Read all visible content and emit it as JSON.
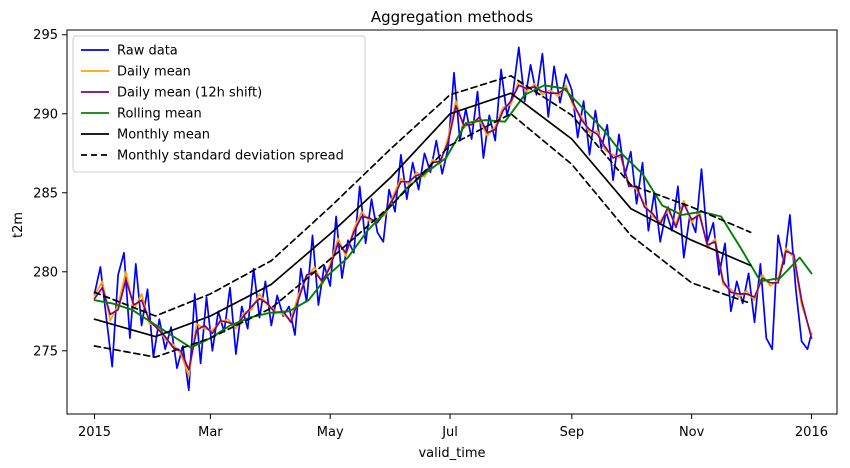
{
  "chart_data": {
    "type": "line",
    "title": "Aggregation methods",
    "xlabel": "valid_time",
    "ylabel": "t2m",
    "x_range": [
      "2014-12-18",
      "2016-01-14"
    ],
    "ylim": [
      271.0,
      295.3
    ],
    "yticks": [
      275,
      280,
      285,
      290,
      295
    ],
    "xticks": [
      {
        "date": "2015-01-01",
        "label": "2015"
      },
      {
        "date": "2015-03-01",
        "label": "Mar"
      },
      {
        "date": "2015-05-01",
        "label": "May"
      },
      {
        "date": "2015-07-01",
        "label": "Jul"
      },
      {
        "date": "2015-09-01",
        "label": "Sep"
      },
      {
        "date": "2015-11-01",
        "label": "Nov"
      },
      {
        "date": "2016-01-01",
        "label": "2016"
      }
    ],
    "grid": false,
    "legend_position": "top-left",
    "series": [
      {
        "name": "Raw data",
        "color": "#0000ff",
        "style": "solid",
        "width": 1.7,
        "x": [
          "2015-01-01",
          "2015-01-04",
          "2015-01-07",
          "2015-01-10",
          "2015-01-13",
          "2015-01-16",
          "2015-01-19",
          "2015-01-22",
          "2015-01-25",
          "2015-01-28",
          "2015-01-31",
          "2015-02-03",
          "2015-02-06",
          "2015-02-09",
          "2015-02-12",
          "2015-02-15",
          "2015-02-18",
          "2015-02-21",
          "2015-02-24",
          "2015-02-27",
          "2015-03-02",
          "2015-03-05",
          "2015-03-08",
          "2015-03-11",
          "2015-03-14",
          "2015-03-17",
          "2015-03-20",
          "2015-03-23",
          "2015-03-26",
          "2015-03-29",
          "2015-04-01",
          "2015-04-04",
          "2015-04-07",
          "2015-04-10",
          "2015-04-13",
          "2015-04-16",
          "2015-04-19",
          "2015-04-22",
          "2015-04-25",
          "2015-04-28",
          "2015-05-01",
          "2015-05-04",
          "2015-05-07",
          "2015-05-10",
          "2015-05-13",
          "2015-05-16",
          "2015-05-19",
          "2015-05-22",
          "2015-05-25",
          "2015-05-28",
          "2015-05-31",
          "2015-06-03",
          "2015-06-06",
          "2015-06-09",
          "2015-06-12",
          "2015-06-15",
          "2015-06-18",
          "2015-06-21",
          "2015-06-24",
          "2015-06-27",
          "2015-06-30",
          "2015-07-03",
          "2015-07-06",
          "2015-07-09",
          "2015-07-12",
          "2015-07-15",
          "2015-07-18",
          "2015-07-21",
          "2015-07-24",
          "2015-07-27",
          "2015-07-30",
          "2015-08-02",
          "2015-08-05",
          "2015-08-08",
          "2015-08-11",
          "2015-08-14",
          "2015-08-17",
          "2015-08-20",
          "2015-08-23",
          "2015-08-26",
          "2015-08-29",
          "2015-09-01",
          "2015-09-04",
          "2015-09-07",
          "2015-09-10",
          "2015-09-13",
          "2015-09-16",
          "2015-09-19",
          "2015-09-22",
          "2015-09-25",
          "2015-09-28",
          "2015-10-01",
          "2015-10-04",
          "2015-10-07",
          "2015-10-10",
          "2015-10-13",
          "2015-10-16",
          "2015-10-19",
          "2015-10-22",
          "2015-10-25",
          "2015-10-28",
          "2015-10-31",
          "2015-11-03",
          "2015-11-06",
          "2015-11-09",
          "2015-11-12",
          "2015-11-15",
          "2015-11-18",
          "2015-11-21",
          "2015-11-24",
          "2015-11-27",
          "2015-11-30",
          "2015-12-03",
          "2015-12-06",
          "2015-12-09",
          "2015-12-12",
          "2015-12-15",
          "2015-12-18",
          "2015-12-21",
          "2015-12-24",
          "2015-12-27",
          "2015-12-30",
          "2016-01-01"
        ],
        "values": [
          278.6,
          280.3,
          277.1,
          274.0,
          279.8,
          281.2,
          275.8,
          280.5,
          276.6,
          278.9,
          274.6,
          277.0,
          275.1,
          276.5,
          273.9,
          275.3,
          272.5,
          278.6,
          274.2,
          278.4,
          275.0,
          277.5,
          276.2,
          279.0,
          274.8,
          277.8,
          276.4,
          280.2,
          277.1,
          279.4,
          276.6,
          278.5,
          277.2,
          277.8,
          276.0,
          280.2,
          278.1,
          282.3,
          277.9,
          280.4,
          279.1,
          283.5,
          279.6,
          282.0,
          281.2,
          285.4,
          281.8,
          284.6,
          282.5,
          281.9,
          285.2,
          283.8,
          287.4,
          284.6,
          286.9,
          285.2,
          287.5,
          286.3,
          288.3,
          286.2,
          287.8,
          292.6,
          288.3,
          290.3,
          288.4,
          291.4,
          287.2,
          289.9,
          288.3,
          292.8,
          289.9,
          291.3,
          294.2,
          290.8,
          293.1,
          291.2,
          293.8,
          289.8,
          293.0,
          290.7,
          292.5,
          291.5,
          288.5,
          290.8,
          287.4,
          290.2,
          287.8,
          289.3,
          285.8,
          288.7,
          286.1,
          287.6,
          284.3,
          286.9,
          282.6,
          285.0,
          281.9,
          283.8,
          282.6,
          285.4,
          280.9,
          283.5,
          282.5,
          286.5,
          281.9,
          283.1,
          279.8,
          281.8,
          277.5,
          279.4,
          278.0,
          279.9,
          276.8,
          280.5,
          275.8,
          275.1,
          282.3,
          280.5,
          283.6,
          278.9,
          275.6,
          275.1,
          276.1
        ]
      },
      {
        "name": "Daily mean",
        "color": "#ffa500",
        "style": "solid",
        "width": 1.7,
        "x": [
          "2015-01-01",
          "2015-01-05",
          "2015-01-09",
          "2015-01-13",
          "2015-01-17",
          "2015-01-21",
          "2015-01-25",
          "2015-01-29",
          "2015-02-02",
          "2015-02-06",
          "2015-02-10",
          "2015-02-14",
          "2015-02-18",
          "2015-02-22",
          "2015-02-26",
          "2015-03-02",
          "2015-03-06",
          "2015-03-10",
          "2015-03-14",
          "2015-03-18",
          "2015-03-22",
          "2015-03-26",
          "2015-03-30",
          "2015-04-03",
          "2015-04-07",
          "2015-04-11",
          "2015-04-15",
          "2015-04-19",
          "2015-04-23",
          "2015-04-27",
          "2015-05-01",
          "2015-05-05",
          "2015-05-09",
          "2015-05-13",
          "2015-05-17",
          "2015-05-21",
          "2015-05-25",
          "2015-05-29",
          "2015-06-02",
          "2015-06-06",
          "2015-06-10",
          "2015-06-14",
          "2015-06-18",
          "2015-06-22",
          "2015-06-26",
          "2015-06-30",
          "2015-07-04",
          "2015-07-08",
          "2015-07-12",
          "2015-07-16",
          "2015-07-20",
          "2015-07-24",
          "2015-07-28",
          "2015-08-01",
          "2015-08-05",
          "2015-08-09",
          "2015-08-13",
          "2015-08-17",
          "2015-08-21",
          "2015-08-25",
          "2015-08-29",
          "2015-09-02",
          "2015-09-06",
          "2015-09-10",
          "2015-09-14",
          "2015-09-18",
          "2015-09-22",
          "2015-09-26",
          "2015-09-30",
          "2015-10-04",
          "2015-10-08",
          "2015-10-12",
          "2015-10-16",
          "2015-10-20",
          "2015-10-24",
          "2015-10-28",
          "2015-11-01",
          "2015-11-05",
          "2015-11-09",
          "2015-11-13",
          "2015-11-17",
          "2015-11-21",
          "2015-11-25",
          "2015-11-29",
          "2015-12-03",
          "2015-12-07",
          "2015-12-11",
          "2015-12-15",
          "2015-12-19",
          "2015-12-23",
          "2015-12-27",
          "2016-01-01"
        ],
        "values": [
          278.5,
          279.4,
          276.9,
          277.9,
          280.0,
          277.6,
          278.6,
          276.7,
          276.6,
          275.7,
          275.4,
          274.8,
          273.4,
          276.7,
          276.4,
          276.3,
          276.8,
          277.0,
          276.4,
          277.4,
          277.6,
          278.6,
          277.9,
          277.5,
          277.3,
          277.0,
          278.6,
          279.6,
          280.3,
          279.2,
          280.5,
          282.1,
          281.0,
          282.7,
          283.8,
          283.2,
          283.3,
          283.6,
          284.8,
          285.9,
          285.5,
          286.3,
          286.0,
          287.1,
          286.8,
          288.5,
          290.8,
          289.1,
          289.5,
          289.6,
          288.6,
          289.2,
          290.4,
          290.6,
          292.1,
          291.4,
          291.9,
          291.2,
          291.5,
          291.1,
          291.8,
          290.4,
          289.8,
          288.8,
          288.9,
          287.7,
          287.4,
          287.2,
          285.6,
          285.2,
          284.3,
          283.5,
          283.2,
          283.9,
          283.0,
          284.5,
          283.1,
          283.8,
          281.5,
          282.1,
          279.2,
          278.9,
          278.4,
          278.8,
          278.2,
          279.8,
          279.1,
          279.5,
          281.5,
          280.9,
          277.9,
          276.0
        ]
      },
      {
        "name": "Daily mean (12h shift)",
        "color": "#800080",
        "style": "solid",
        "width": 1.7,
        "x": [
          "2015-01-01",
          "2015-01-05",
          "2015-01-09",
          "2015-01-13",
          "2015-01-17",
          "2015-01-21",
          "2015-01-25",
          "2015-01-29",
          "2015-02-02",
          "2015-02-06",
          "2015-02-10",
          "2015-02-14",
          "2015-02-18",
          "2015-02-22",
          "2015-02-26",
          "2015-03-02",
          "2015-03-06",
          "2015-03-10",
          "2015-03-14",
          "2015-03-18",
          "2015-03-22",
          "2015-03-26",
          "2015-03-30",
          "2015-04-03",
          "2015-04-07",
          "2015-04-11",
          "2015-04-15",
          "2015-04-19",
          "2015-04-23",
          "2015-04-27",
          "2015-05-01",
          "2015-05-05",
          "2015-05-09",
          "2015-05-13",
          "2015-05-17",
          "2015-05-21",
          "2015-05-25",
          "2015-05-29",
          "2015-06-02",
          "2015-06-06",
          "2015-06-10",
          "2015-06-14",
          "2015-06-18",
          "2015-06-22",
          "2015-06-26",
          "2015-06-30",
          "2015-07-04",
          "2015-07-08",
          "2015-07-12",
          "2015-07-16",
          "2015-07-20",
          "2015-07-24",
          "2015-07-28",
          "2015-08-01",
          "2015-08-05",
          "2015-08-09",
          "2015-08-13",
          "2015-08-17",
          "2015-08-21",
          "2015-08-25",
          "2015-08-29",
          "2015-09-02",
          "2015-09-06",
          "2015-09-10",
          "2015-09-14",
          "2015-09-18",
          "2015-09-22",
          "2015-09-26",
          "2015-09-30",
          "2015-10-04",
          "2015-10-08",
          "2015-10-12",
          "2015-10-16",
          "2015-10-20",
          "2015-10-24",
          "2015-10-28",
          "2015-11-01",
          "2015-11-05",
          "2015-11-09",
          "2015-11-13",
          "2015-11-17",
          "2015-11-21",
          "2015-11-25",
          "2015-11-29",
          "2015-12-03",
          "2015-12-07",
          "2015-12-11",
          "2015-12-15",
          "2015-12-19",
          "2015-12-23",
          "2015-12-27",
          "2016-01-01"
        ],
        "values": [
          278.3,
          279.0,
          277.3,
          277.6,
          279.5,
          277.9,
          278.2,
          276.9,
          276.4,
          275.9,
          275.2,
          275.0,
          273.8,
          276.3,
          276.6,
          276.1,
          276.9,
          276.8,
          276.6,
          277.2,
          277.8,
          278.3,
          278.0,
          277.4,
          277.5,
          276.8,
          278.3,
          279.8,
          280.0,
          279.4,
          280.3,
          281.8,
          281.2,
          282.5,
          283.5,
          283.4,
          283.1,
          283.8,
          284.6,
          285.7,
          285.7,
          286.1,
          286.2,
          286.9,
          287.0,
          288.2,
          290.5,
          289.3,
          289.3,
          289.8,
          288.8,
          289.0,
          290.2,
          290.8,
          291.8,
          291.6,
          291.7,
          291.4,
          291.3,
          291.3,
          291.6,
          290.6,
          289.6,
          289.0,
          288.7,
          287.9,
          287.2,
          287.4,
          285.4,
          285.4,
          284.1,
          283.7,
          283.0,
          284.1,
          282.8,
          284.3,
          283.3,
          283.6,
          281.7,
          281.9,
          279.4,
          278.7,
          278.6,
          278.6,
          278.4,
          279.6,
          279.3,
          279.3,
          281.3,
          281.1,
          278.2,
          275.8
        ]
      },
      {
        "name": "Rolling mean",
        "color": "#008000",
        "style": "solid",
        "width": 1.9,
        "x": [
          "2015-01-01",
          "2015-01-10",
          "2015-01-20",
          "2015-01-30",
          "2015-02-09",
          "2015-02-19",
          "2015-03-01",
          "2015-03-11",
          "2015-03-21",
          "2015-03-31",
          "2015-04-10",
          "2015-04-20",
          "2015-04-30",
          "2015-05-10",
          "2015-05-20",
          "2015-05-30",
          "2015-06-09",
          "2015-06-19",
          "2015-06-29",
          "2015-07-09",
          "2015-07-19",
          "2015-07-29",
          "2015-08-08",
          "2015-08-18",
          "2015-08-28",
          "2015-09-07",
          "2015-09-17",
          "2015-09-27",
          "2015-10-07",
          "2015-10-17",
          "2015-10-27",
          "2015-11-06",
          "2015-11-16",
          "2015-11-26",
          "2015-12-06",
          "2015-12-16",
          "2015-12-26",
          "2016-01-01"
        ],
        "values": [
          278.2,
          278.0,
          277.6,
          276.8,
          276.0,
          275.2,
          275.8,
          276.6,
          277.1,
          277.4,
          277.5,
          278.2,
          279.8,
          280.9,
          282.6,
          283.9,
          285.3,
          286.3,
          287.2,
          289.4,
          289.6,
          289.5,
          291.2,
          291.8,
          291.6,
          290.3,
          289.0,
          287.4,
          286.2,
          284.2,
          283.6,
          283.8,
          283.5,
          281.5,
          279.4,
          279.6,
          280.9,
          279.9
        ]
      },
      {
        "name": "Monthly mean",
        "color": "#000000",
        "style": "solid",
        "width": 1.7,
        "x": [
          "2015-01-01",
          "2015-02-01",
          "2015-03-01",
          "2015-04-01",
          "2015-05-01",
          "2015-06-01",
          "2015-07-01",
          "2015-08-01",
          "2015-09-01",
          "2015-10-01",
          "2015-11-01",
          "2015-12-01"
        ],
        "values": [
          277.0,
          275.9,
          277.2,
          279.2,
          282.4,
          286.0,
          290.0,
          291.3,
          288.4,
          284.0,
          282.0,
          280.4
        ]
      },
      {
        "name": "Monthly standard deviation spread",
        "color": "#000000",
        "style": "dashed",
        "width": 1.7,
        "x": [
          "2015-01-01",
          "2015-02-01",
          "2015-03-01",
          "2015-04-01",
          "2015-05-01",
          "2015-06-01",
          "2015-07-01",
          "2015-08-01",
          "2015-09-01",
          "2015-10-01",
          "2015-11-01",
          "2015-12-01"
        ],
        "upper": [
          278.7,
          277.2,
          278.6,
          280.7,
          284.1,
          287.8,
          291.2,
          292.4,
          289.9,
          285.5,
          284.1,
          282.5
        ],
        "lower": [
          275.3,
          274.6,
          275.8,
          277.7,
          280.8,
          284.2,
          288.0,
          290.0,
          286.8,
          282.3,
          279.3,
          278.0
        ]
      }
    ]
  }
}
